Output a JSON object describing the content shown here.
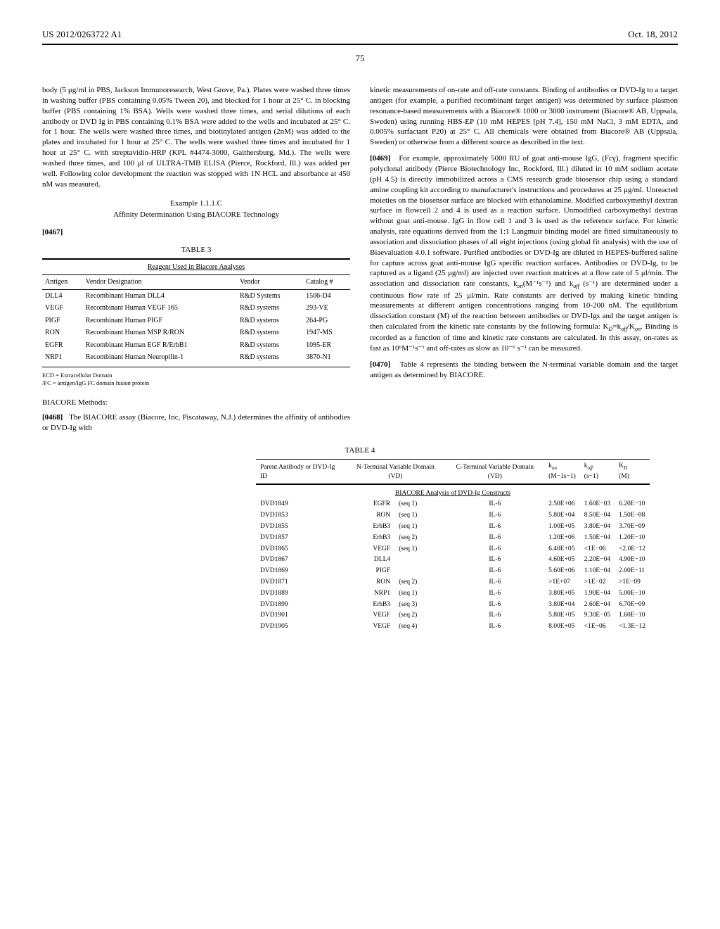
{
  "header": {
    "pub_number": "US 2012/0263722 A1",
    "pub_date": "Oct. 18, 2012",
    "page": "75"
  },
  "left_col": {
    "para_body": "body (5 μg/ml in PBS, Jackson Immunoresearch, West Grove, Pa.). Plates were washed three times in washing buffer (PBS containing 0.05% Tween 20), and blocked for 1 hour at 25° C. in blocking buffer (PBS containing 1% BSA). Wells were washed three times, and serial dilutions of each antibody or DVD Ig in PBS containing 0.1% BSA were added to the wells and incubated at 25° C. for 1 hour. The wells were washed three times, and biotinylated antigen (2nM) was added to the plates and incubated for 1 hour at 25° C. The wells were washed three times and incubated for 1 hour at 25° C. with streptavidin-HRP (KPL #4474-3000, Gaithersburg, Md.). The wells were washed three times, and 100 μl of ULTRA-TMB ELISA (Pierce, Rockford, Ill.) was added per well. Following color development the reaction was stopped with 1N HCL and absorbance at 450 nM was measured.",
    "example_number": "Example 1.1.1.C",
    "example_title": "Affinity Determination Using BIACORE Technology",
    "para_0467": "[0467]",
    "table3_caption": "TABLE 3",
    "table3_title": "Reagent Used in Biacore Analyses",
    "table3_headers": [
      "Antigen",
      "Vendor Designation",
      "Vendor",
      "Catalog #"
    ],
    "table3_rows": [
      [
        "DLL4",
        "Recombinant Human DLL4",
        "R&D Systems",
        "1506-D4"
      ],
      [
        "VEGF",
        "Recombinant Human VEGF 165",
        "R&D systems",
        "293-VE"
      ],
      [
        "PIGF",
        "Recombinant Human PIGF",
        "R&D systems",
        "264-PG"
      ],
      [
        "RON",
        "Recombinant Human MSP R/RON",
        "R&D systems",
        "1947-MS"
      ],
      [
        "EGFR",
        "Recombinant Human EGF R/ErbB1",
        "R&D systems",
        "1095-ER"
      ],
      [
        "NRP1",
        "Recombinant Human Neuropilin-1",
        "R&D systems",
        "3870-N1"
      ]
    ],
    "footnote1": "ECD = Extracellular Domain",
    "footnote2": "/FC = antigen/IgG FC domain fusion protein",
    "biacore_head": "BIACORE Methods:",
    "para_0468_num": "[0468]",
    "para_0468": "The BIACORE assay (Biacore, Inc, Piscataway, N.J.) determines the affinity of antibodies or DVD-Ig with"
  },
  "right_col": {
    "para_top": "kinetic measurements of on-rate and off-rate constants. Binding of antibodies or DVD-Ig to a target antigen (for example, a purified recombinant target antigen) was determined by surface plasmon resonance-based measurements with a Biacore® 1000 or 3000 instrument (Biacore® AB, Uppsala, Sweden) using running HBS-EP (10 mM HEPES [pH 7.4], 150 mM NaCl, 3 mM EDTA, and 0.005% surfactant P20) at 25° C. All chemicals were obtained from Biacore® AB (Uppsala, Sweden) or otherwise from a different source as described in the text.",
    "para_0469_num": "[0469]",
    "para_0469_a": "For example, approximately 5000 RU of goat anti-mouse IgG, (Fcγ), fragment specific polyclonal antibody (Pierce Biotechnology Inc, Rockford, Ill.) diluted in 10 mM sodium acetate (pH 4.5) is directly immobilized across a CMS research grade biosensor chip using a standard amine coupling kit according to manufacturer's instructions and procedures at 25 μg/ml. Unreacted moieties on the biosensor surface are blocked with ethanolamine. Modified carboxymethyl dextran surface in flowcell 2 and 4 is used as a reaction surface. Unmodified carboxymethyl dextran without goat anti-mouse. IgG in flow cell 1 and 3 is used as the reference surface. For kinetic analysis, rate equations derived from the 1:1 Langmuir binding model are fitted simultaneously to association and dissociation phases of all eight injections (using global fit analysis) with the use of Biaevaluation 4.0.1 software. Purified antibodies or DVD-Ig are diluted in HEPES-buffered saline for capture across goat anti-mouse IgG specific reaction surfaces. Antibodies or DVD-Ig, to be captured as a ligand (25 μg/ml) are injected over reaction matrices at a flow rate of 5 μl/min. The association and dissociation rate constants, k",
    "para_0469_on": "on",
    "para_0469_b": "(M⁻¹s⁻¹) and k",
    "para_0469_off": "off",
    "para_0469_c": " (s⁻¹) are determined under a continuous flow rate of 25 μl/min. Rate constants are derived by making kinetic binding measurements at different antigen concentrations ranging from 10-200 nM. The equilibrium dissociation constant (M) of the reaction between antibodies or DVD-Igs and the target antigen is then calculated from the kinetic rate constants by the following formula: K",
    "para_0469_d": "D",
    "para_0469_e": "=k",
    "para_0469_f": "off",
    "para_0469_g": "/K",
    "para_0469_h": "on",
    "para_0469_i": ". Binding is recorded as a function of time and kinetic rate constants are calculated. In this assay, on-rates as fast as 10⁶M⁻¹s⁻¹ and off-rates as slow as 10⁻⁶ s⁻¹ can be measured.",
    "para_0470_num": "[0470]",
    "para_0470": "Table 4 represents the binding between the N-terminal variable domain and the target antigen as determined by BIACORE."
  },
  "table4": {
    "caption": "TABLE 4",
    "title": "BIACORE Analysis of DVD-Ig Constructs",
    "headers": {
      "col1": "Parent Antibody or DVD-Ig ID",
      "col2": "N-Terminal Variable Domain (VD)",
      "col3": "C-Terminal Variable Domain (VD)",
      "col4_main": "k",
      "col4_sub": "on",
      "col4_unit": "(M−1s−1)",
      "col5_main": "k",
      "col5_sub": "off",
      "col5_unit": "(s−1)",
      "col6_main": "K",
      "col6_sub": "D",
      "col6_unit": "(M)"
    },
    "rows": [
      [
        "DVD1849",
        "EGFR",
        "(seq 1)",
        "IL-6",
        "2.50E+06",
        "1.60E−03",
        "6.20E−10"
      ],
      [
        "DVD1853",
        "RON",
        "(seq 1)",
        "IL-6",
        "5.80E+04",
        "8.50E−04",
        "1.50E−08"
      ],
      [
        "DVD1855",
        "ErbB3",
        "(seq 1)",
        "IL-6",
        "1.00E+05",
        "3.80E−04",
        "3.70E−09"
      ],
      [
        "DVD1857",
        "ErbB3",
        "(seq 2)",
        "IL-6",
        "1.20E+06",
        "1.50E−04",
        "1.20E−10"
      ],
      [
        "DVD1865",
        "VEGF",
        "(seq 1)",
        "IL-6",
        "6.40E+05",
        "<1E−06",
        "<2.0E−12"
      ],
      [
        "DVD1867",
        "DLL4",
        "",
        "IL-6",
        "4.60E+05",
        "2.20E−04",
        "4.90E−10"
      ],
      [
        "DVD1869",
        "PIGF",
        "",
        "IL-6",
        "5.60E+06",
        "1.10E−04",
        "2.00E−11"
      ],
      [
        "DVD1871",
        "RON",
        "(seq 2)",
        "IL-6",
        ">1E+07",
        ">1E−02",
        ">1E−09"
      ],
      [
        "DVD1889",
        "NRP1",
        "(seq 1)",
        "IL-6",
        "3.80E+05",
        "1.90E−04",
        "5.00E−10"
      ],
      [
        "DVD1899",
        "ErbB3",
        "(seq 3)",
        "IL-6",
        "3.80E+04",
        "2.60E−04",
        "6.70E−09"
      ],
      [
        "DVD1901",
        "VEGF",
        "(seq 2)",
        "IL-6",
        "5.80E+05",
        "9.30E−05",
        "1.60E−10"
      ],
      [
        "DVD1905",
        "VEGF",
        "(seq 4)",
        "IL-6",
        "8.00E+05",
        "<1E−06",
        "<1.3E−12"
      ]
    ]
  }
}
